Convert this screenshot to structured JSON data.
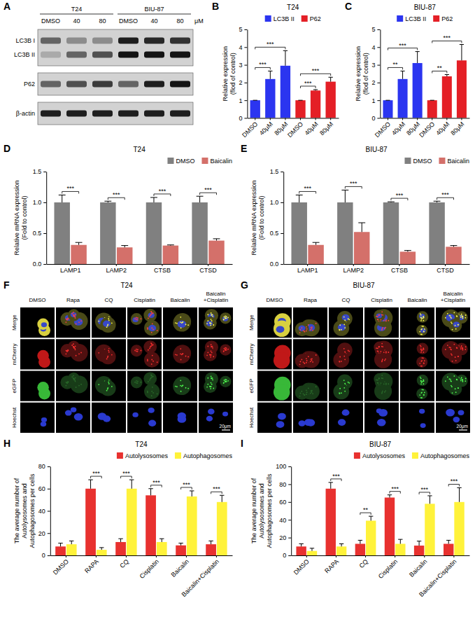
{
  "chart_data": [
    {
      "panel": "B",
      "type": "bar",
      "title": "T24",
      "categories": [
        "DMSO",
        "40μM",
        "80μM",
        "DMSO",
        "40μM",
        "80μM"
      ],
      "series": [
        {
          "name": "LC3B II",
          "color": "#2b35f0",
          "values": [
            1,
            2.2,
            2.95,
            null,
            null,
            null
          ],
          "errors": [
            0,
            0.45,
            0.85,
            null,
            null,
            null
          ]
        },
        {
          "name": "P62",
          "color": "#e41f26",
          "values": [
            null,
            null,
            null,
            1,
            1.55,
            2.05
          ],
          "errors": [
            null,
            null,
            null,
            0,
            0.05,
            0.25
          ]
        }
      ],
      "y_label": [
        "Relative expression",
        "(flod of control)"
      ],
      "ylim": [
        0,
        5
      ],
      "yticks": [
        0,
        1,
        2,
        3,
        4,
        5
      ],
      "legend": "top",
      "annotations": [
        {
          "text": "***",
          "from": 0,
          "to": 1
        },
        {
          "text": "***",
          "from": 0,
          "to": 2
        },
        {
          "text": "***",
          "from": 3,
          "to": 4
        },
        {
          "text": "***",
          "from": 3,
          "to": 5
        }
      ]
    },
    {
      "panel": "C",
      "type": "bar",
      "title": "BIU-87",
      "categories": [
        "DMSO",
        "40μM",
        "80μM",
        "DMSO",
        "40μM",
        "80μM"
      ],
      "series": [
        {
          "name": "LC3B II",
          "color": "#2b35f0",
          "values": [
            1,
            2.2,
            3.1,
            null,
            null,
            null
          ],
          "errors": [
            0,
            0.45,
            0.65,
            null,
            null,
            null
          ]
        },
        {
          "name": "P62",
          "color": "#e41f26",
          "values": [
            null,
            null,
            null,
            1,
            2.35,
            3.25
          ],
          "errors": [
            null,
            null,
            null,
            0,
            0.1,
            0.9
          ]
        }
      ],
      "y_label": [
        "Relative expression",
        "(flod of control)"
      ],
      "ylim": [
        0,
        5
      ],
      "yticks": [
        0,
        1,
        2,
        3,
        4,
        5
      ],
      "legend": "top",
      "annotations": [
        {
          "text": "**",
          "from": 0,
          "to": 1
        },
        {
          "text": "***",
          "from": 0,
          "to": 2
        },
        {
          "text": "**",
          "from": 3,
          "to": 4
        },
        {
          "text": "***",
          "from": 3,
          "to": 5
        }
      ]
    },
    {
      "panel": "D",
      "type": "bar",
      "title": "T24",
      "categories": [
        "LAMP1",
        "LAMP2",
        "CTSB",
        "CTSD"
      ],
      "series": [
        {
          "name": "DMSO",
          "color": "#808080",
          "values": [
            1,
            1,
            1,
            1
          ],
          "errors": [
            0.12,
            0.02,
            0.08,
            0.1
          ]
        },
        {
          "name": "Baicalin",
          "color": "#d4706a",
          "values": [
            0.31,
            0.27,
            0.3,
            0.38
          ],
          "errors": [
            0.04,
            0.03,
            0.01,
            0.03
          ]
        }
      ],
      "y_label": [
        "Relative mRNA expression",
        "(Fold to control)"
      ],
      "ylim": [
        0,
        1.5
      ],
      "yticks": [
        {
          "value": 0,
          "label": "0.0"
        },
        {
          "value": 0.5,
          "label": "0.5"
        },
        {
          "value": 1,
          "label": "1.0"
        },
        {
          "value": 1.5,
          "label": "1.5"
        }
      ],
      "legend": "top-right",
      "annotations": [
        {
          "text": "***",
          "category": 0
        },
        {
          "text": "***",
          "category": 1
        },
        {
          "text": "***",
          "category": 2
        },
        {
          "text": "***",
          "category": 3
        }
      ]
    },
    {
      "panel": "E",
      "type": "bar",
      "title": "BIU-87",
      "categories": [
        "LAMP1",
        "LAMP2",
        "CTSB",
        "CTSD"
      ],
      "series": [
        {
          "name": "DMSO",
          "color": "#808080",
          "values": [
            1,
            1,
            1,
            1
          ],
          "errors": [
            0.12,
            0.2,
            0.01,
            0.02
          ]
        },
        {
          "name": "Baicalin",
          "color": "#d4706a",
          "values": [
            0.31,
            0.52,
            0.2,
            0.28
          ],
          "errors": [
            0.04,
            0.15,
            0.02,
            0.02
          ]
        }
      ],
      "y_label": [
        "Relative mRNA expression",
        "(Fold to control)"
      ],
      "ylim": [
        0,
        1.5
      ],
      "yticks": [
        {
          "value": 0,
          "label": "0.0"
        },
        {
          "value": 0.5,
          "label": "0.5"
        },
        {
          "value": 1,
          "label": "1.0"
        },
        {
          "value": 1.5,
          "label": "1.5"
        }
      ],
      "legend": "top-right",
      "annotations": [
        {
          "text": "***",
          "category": 0
        },
        {
          "text": "***",
          "category": 1
        },
        {
          "text": "***",
          "category": 2
        },
        {
          "text": "***",
          "category": 3
        }
      ]
    },
    {
      "panel": "H",
      "type": "bar",
      "title": "T24",
      "categories": [
        "DMSO",
        "RAPA",
        "CQ",
        "Cisplatin",
        "Baicalin",
        "Baicalin+Cisplatin"
      ],
      "series": [
        {
          "name": "Autolysosomes",
          "color": "#e8312f",
          "values": [
            8,
            60,
            12,
            54,
            9,
            10
          ],
          "errors": [
            3,
            8,
            3,
            6,
            2,
            3
          ]
        },
        {
          "name": "Autophagosomes",
          "color": "#fff23a",
          "values": [
            10,
            5,
            60,
            12,
            53,
            48
          ],
          "errors": [
            3,
            2,
            8,
            3,
            5,
            6
          ]
        }
      ],
      "y_label": [
        "The average number of",
        "Autolysosomes and",
        "Autophagosomes per cells"
      ],
      "ylim": [
        0,
        80
      ],
      "yticks": [
        0,
        20,
        40,
        60,
        80
      ],
      "legend": "top-right",
      "annotations": [
        {
          "text": "***",
          "category": 1
        },
        {
          "text": "***",
          "category": 2
        },
        {
          "text": "***",
          "category": 3
        },
        {
          "text": "***",
          "category": 4
        },
        {
          "text": "***",
          "category": 5
        }
      ]
    },
    {
      "panel": "I",
      "type": "bar",
      "title": "BIU-87",
      "categories": [
        "DMSO",
        "RAPA",
        "CQ",
        "Cisplatin",
        "Baicalin",
        "Baicalin+Cisplatin"
      ],
      "series": [
        {
          "name": "Autolysosomes",
          "color": "#e8312f",
          "values": [
            10,
            75,
            13,
            65,
            11,
            13
          ],
          "errors": [
            3,
            7,
            4,
            3,
            5,
            4
          ]
        },
        {
          "name": "Autophagosomes",
          "color": "#fff23a",
          "values": [
            5,
            10,
            39,
            13,
            58,
            60
          ],
          "errors": [
            3,
            3,
            5,
            5,
            9,
            16
          ]
        }
      ],
      "y_label": [
        "The average number of",
        "Autolysosomes and",
        "Autophagosomes per cells"
      ],
      "ylim": [
        0,
        100
      ],
      "yticks": [
        0,
        20,
        40,
        60,
        80,
        100
      ],
      "legend": "top-right",
      "annotations": [
        {
          "text": "***",
          "category": 1
        },
        {
          "text": "**",
          "category": 2
        },
        {
          "text": "***",
          "category": 3
        },
        {
          "text": "***",
          "category": 4
        },
        {
          "text": "***",
          "category": 5
        }
      ]
    }
  ],
  "blot": {
    "panel": "A",
    "groups": [
      {
        "label": "T24",
        "first": 0,
        "last": 2
      },
      {
        "label": "BIU-87",
        "first": 3,
        "last": 5
      }
    ],
    "lanes": [
      "DMSO",
      "40",
      "80",
      "DMSO",
      "40",
      "80"
    ],
    "unit": "μM",
    "strips": [
      {
        "rows": [
          {
            "label": "LC3B I",
            "intensity": [
              0.55,
              0.35,
              0.35,
              0.9,
              0.85,
              0.8
            ]
          },
          {
            "label": "LC3B II",
            "intensity": [
              0.2,
              0.55,
              0.65,
              0.95,
              0.95,
              0.95
            ]
          }
        ]
      },
      {
        "rows": [
          {
            "label": "P62",
            "intensity": [
              0.55,
              0.65,
              0.75,
              0.55,
              0.9,
              0.95
            ]
          }
        ]
      },
      {
        "rows": [
          {
            "label": "β-actin",
            "intensity": [
              0.9,
              0.9,
              0.9,
              0.9,
              0.9,
              0.9
            ]
          }
        ]
      }
    ]
  },
  "micrographs": [
    {
      "panel": "F",
      "title": "T24",
      "columns": [
        "DMSO",
        "Rapa",
        "CQ",
        "Cisplatin",
        "Baicalin",
        "Baicalin +Cisplatin"
      ],
      "rows": [
        "Merge",
        "mCherry",
        "eGFP",
        "Hoechst"
      ],
      "scale_bar": "20μm"
    },
    {
      "panel": "G",
      "title": "BIU-87",
      "columns": [
        "DMSO",
        "Rapa",
        "CQ",
        "Cisplatin",
        "Baicalin",
        "Baicalin +Cisplatin"
      ],
      "rows": [
        "Merge",
        "mCherry",
        "eGFP",
        "Hoechst"
      ],
      "scale_bar": "20μm"
    }
  ]
}
